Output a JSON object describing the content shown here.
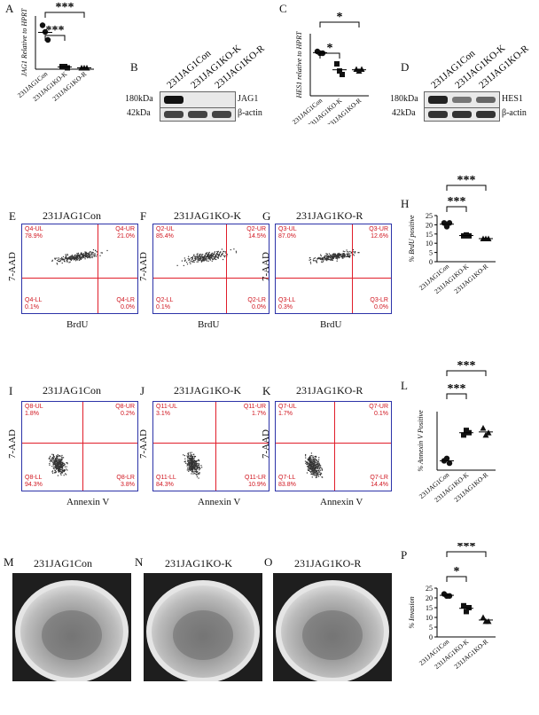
{
  "panels": {
    "A": {
      "letter": "A",
      "ylabel": "JAG1 Relative to HPRT",
      "categories": [
        "231JAG1Con",
        "231JAG1KO-K",
        "231JAG1KO-R"
      ],
      "sig": [
        "***",
        "***"
      ]
    },
    "B": {
      "letter": "B",
      "lanes": [
        "231JAG1Con",
        "231JAG1KO-K",
        "231JAG1KO-R"
      ],
      "rows": [
        {
          "size": "180kDa",
          "protein": "JAG1"
        },
        {
          "size": "42kDa",
          "protein": "β-actin"
        }
      ]
    },
    "C": {
      "letter": "C",
      "ylabel": "HES1 relative to HPRT",
      "categories": [
        "231JAG1Con",
        "231JAG1KO-K",
        "231JAG1KO-R"
      ],
      "sig": [
        "*",
        "*"
      ]
    },
    "D": {
      "letter": "D",
      "lanes": [
        "231JAG1Con",
        "231JAG1KO-K",
        "231JAG1KO-R"
      ],
      "rows": [
        {
          "size": "180kDa",
          "protein": "HES1"
        },
        {
          "size": "42kDa",
          "protein": "β-actin"
        }
      ]
    },
    "E": {
      "letter": "E",
      "title": "231JAG1Con",
      "ylabel": "7-AAD",
      "xlabel": "BrdU",
      "q": {
        "ul": "Q4-UL",
        "ulv": "78.9%",
        "ur": "Q4-UR",
        "urv": "21.0%",
        "ll": "Q4-LL",
        "llv": "0.1%",
        "lr": "Q4-LR",
        "lrv": "0.0%"
      }
    },
    "F": {
      "letter": "F",
      "title": "231JAG1KO-K",
      "ylabel": "7-AAD",
      "xlabel": "BrdU",
      "q": {
        "ul": "Q2-UL",
        "ulv": "85.4%",
        "ur": "Q2-UR",
        "urv": "14.5%",
        "ll": "Q2-LL",
        "llv": "0.1%",
        "lr": "Q2-LR",
        "lrv": "0.0%"
      }
    },
    "G": {
      "letter": "G",
      "title": "231JAG1KO-R",
      "ylabel": "7-AAD",
      "xlabel": "BrdU",
      "q": {
        "ul": "Q3-UL",
        "ulv": "87.0%",
        "ur": "Q3-UR",
        "urv": "12.6%",
        "ll": "Q3-LL",
        "llv": "0.3%",
        "lr": "Q3-LR",
        "lrv": "0.0%"
      }
    },
    "H": {
      "letter": "H",
      "ylabel": "% BrdU positive",
      "yticks": [
        "0",
        "5",
        "10",
        "15",
        "20",
        "25"
      ],
      "categories": [
        "231JAG1Con",
        "231JAG1KO-K",
        "231JAG1KO-R"
      ],
      "sig": [
        "***",
        "***"
      ]
    },
    "I": {
      "letter": "I",
      "title": "231JAG1Con",
      "ylabel": "7-AAD",
      "xlabel": "Annexin V",
      "q": {
        "ul": "Q8-UL",
        "ulv": "1.8%",
        "ur": "Q8-UR",
        "urv": "0.2%",
        "ll": "Q8-LL",
        "llv": "94.3%",
        "lr": "Q8-LR",
        "lrv": "3.8%"
      }
    },
    "J": {
      "letter": "J",
      "title": "231JAG1KO-K",
      "ylabel": "7-AAD",
      "xlabel": "Annexin V",
      "q": {
        "ul": "Q11-UL",
        "ulv": "3.1%",
        "ur": "Q11-UR",
        "urv": "1.7%",
        "ll": "Q11-LL",
        "llv": "84.3%",
        "lr": "Q11-LR",
        "lrv": "10.9%"
      }
    },
    "K": {
      "letter": "K",
      "title": "231JAG1KO-R",
      "ylabel": "7-AAD",
      "xlabel": "Annexin V",
      "q": {
        "ul": "Q7-UL",
        "ulv": "1.7%",
        "ur": "Q7-UR",
        "urv": "0.1%",
        "ll": "Q7-LL",
        "llv": "83.8%",
        "lr": "Q7-LR",
        "lrv": "14.4%"
      }
    },
    "L": {
      "letter": "L",
      "ylabel": "% Annexin V Positive",
      "categories": [
        "231JAG1Con",
        "231JAG1KO-K",
        "231JAG1KO-R"
      ],
      "sig": [
        "***",
        "***"
      ]
    },
    "M": {
      "letter": "M",
      "title": "231JAG1Con"
    },
    "N": {
      "letter": "N",
      "title": "231JAG1KO-K"
    },
    "O": {
      "letter": "O",
      "title": "231JAG1KO-R"
    },
    "P": {
      "letter": "P",
      "ylabel": "% Invasion",
      "yticks": [
        "0",
        "5",
        "10",
        "15",
        "20",
        "25"
      ],
      "categories": [
        "231JAG1Con",
        "231JAG1KO-K",
        "231JAG1KO-R"
      ],
      "sig": [
        "***",
        "*"
      ]
    }
  },
  "chart_data": [
    {
      "type": "scatter",
      "panel": "A",
      "ylabel": "JAG1 Relative to HPRT",
      "categories": [
        "231JAG1Con",
        "231JAG1KO-K",
        "231JAG1KO-R"
      ],
      "series": [
        {
          "values": [
            [
              0.33,
              0.28,
              0.22
            ],
            [
              0.02,
              0.02,
              0.01
            ],
            [
              0.01,
              0.01,
              0.01
            ]
          ]
        }
      ]
    },
    {
      "type": "scatter",
      "panel": "C",
      "ylabel": "HES1 relative to HPRT",
      "categories": [
        "231JAG1Con",
        "231JAG1KO-K",
        "231JAG1KO-R"
      ],
      "series": [
        {
          "values": [
            [
              0.25,
              0.24,
              0.24
            ],
            [
              0.18,
              0.14,
              0.12
            ],
            [
              0.15,
              0.14,
              0.15
            ]
          ]
        }
      ]
    },
    {
      "type": "scatter",
      "panel": "H",
      "ylabel": "% BrdU positive",
      "ylim": [
        0,
        25
      ],
      "categories": [
        "231JAG1Con",
        "231JAG1KO-K",
        "231JAG1KO-R"
      ],
      "series": [
        {
          "values": [
            [
              21,
              19,
              21
            ],
            [
              14,
              14.5,
              14
            ],
            [
              12.5,
              12.5,
              12.5
            ]
          ]
        }
      ]
    },
    {
      "type": "scatter",
      "panel": "L",
      "ylabel": "% Annexin V Positive",
      "categories": [
        "231JAG1Con",
        "231JAG1KO-K",
        "231JAG1KO-R"
      ],
      "series": [
        {
          "values": [
            [
              4,
              5,
              3
            ],
            [
              15,
              17,
              16
            ],
            [
              18,
              15,
              16
            ]
          ]
        }
      ]
    },
    {
      "type": "scatter",
      "panel": "P",
      "ylabel": "% Invasion",
      "ylim": [
        0,
        25
      ],
      "categories": [
        "231JAG1Con",
        "231JAG1KO-K",
        "231JAG1KO-R"
      ],
      "series": [
        {
          "values": [
            [
              22,
              21,
              21
            ],
            [
              16,
              13,
              15
            ],
            [
              10,
              8,
              8
            ]
          ]
        }
      ]
    }
  ]
}
